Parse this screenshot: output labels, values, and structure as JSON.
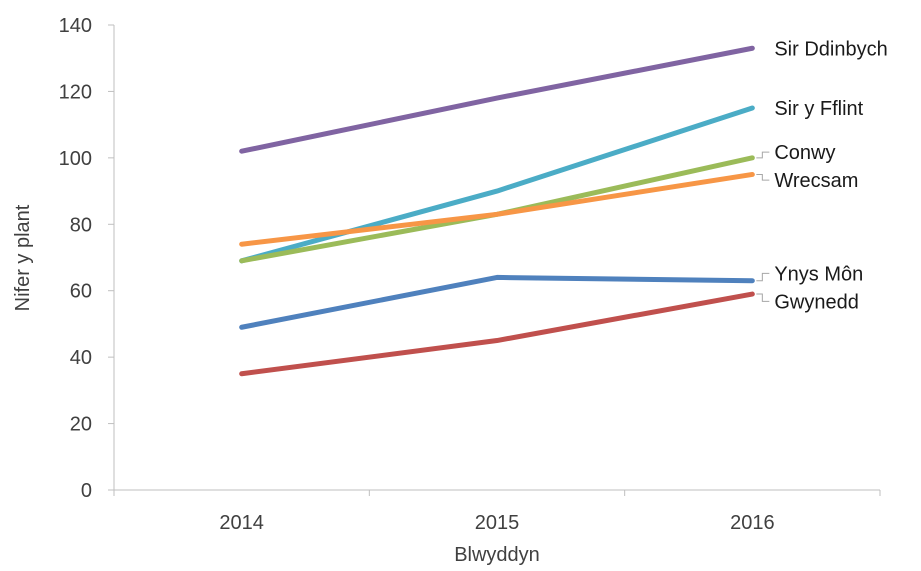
{
  "chart_data": {
    "type": "line",
    "title": "",
    "xlabel": "Blwyddyn",
    "ylabel": "Nifer y plant",
    "categories": [
      "2014",
      "2015",
      "2016"
    ],
    "ylim": [
      0,
      140
    ],
    "yticks": [
      "0",
      "20",
      "40",
      "60",
      "80",
      "100",
      "120",
      "140"
    ],
    "grid": false,
    "legend": "inline-right",
    "series": [
      {
        "name": "Sir Ddinbych",
        "values": [
          102,
          118,
          133
        ],
        "color": "#8064A2"
      },
      {
        "name": "Sir y Fflint",
        "values": [
          69,
          90,
          115
        ],
        "color": "#4BACC6"
      },
      {
        "name": "Conwy",
        "values": [
          69,
          83,
          100
        ],
        "color": "#9BBB59"
      },
      {
        "name": "Wrecsam",
        "values": [
          74,
          83,
          95
        ],
        "color": "#F79646"
      },
      {
        "name": "Ynys Môn",
        "values": [
          49,
          64,
          63
        ],
        "color": "#4F81BD"
      },
      {
        "name": "Gwynedd",
        "values": [
          35,
          45,
          59
        ],
        "color": "#C0504D"
      }
    ]
  }
}
